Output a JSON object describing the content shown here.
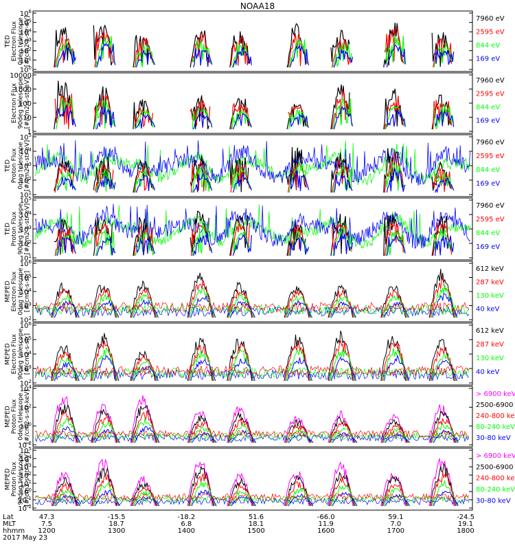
{
  "title": "NOAA18",
  "date_label": "2017 May 23",
  "colors": {
    "black": "#000000",
    "red": "#ff0000",
    "green": "#00ff00",
    "blue": "#0000ff",
    "magenta": "#ff00ff"
  },
  "footer": {
    "row_labels": [
      "Lat",
      "MLT",
      "hhmm"
    ],
    "columns": [
      {
        "lat": "47.3",
        "mlt": "7.5",
        "hhmm": "1200"
      },
      {
        "lat": "-15.5",
        "mlt": "18.7",
        "hhmm": "1300"
      },
      {
        "lat": "-18.2",
        "mlt": "6.8",
        "hhmm": "1400"
      },
      {
        "lat": "51.6",
        "mlt": "18.1",
        "hhmm": "1500"
      },
      {
        "lat": "-66.0",
        "mlt": "11.9",
        "hhmm": "1600"
      },
      {
        "lat": "59.1",
        "mlt": "7.0",
        "hhmm": "1700"
      },
      {
        "lat": "-24.5",
        "mlt": "19.1",
        "hhmm": "1800"
      }
    ]
  },
  "chart_data": [
    {
      "type": "line",
      "ylabel": [
        "TED",
        "Electron Flux",
        "0deg telescope",
        "[#/cm2-s-str-eV]"
      ],
      "ytick_labels": [
        "10^6",
        "10^5",
        "10^4",
        "10^3",
        "10^2",
        "10^1",
        "10^0"
      ],
      "ylim": [
        0,
        6
      ],
      "log": true,
      "xlim": [
        1200,
        1800
      ],
      "legend": [
        {
          "label": "7960 eV",
          "color": "black"
        },
        {
          "label": "2595 eV",
          "color": "red"
        },
        {
          "label": "844 eV",
          "color": "green"
        },
        {
          "label": "169 eV",
          "color": "blue"
        }
      ]
    },
    {
      "type": "line",
      "ylabel": [
        "Electron Flux",
        "90deg telescope",
        "[#/cm2-s-str-eV]"
      ],
      "ytick_labels": [
        "10000",
        "1000",
        "100",
        "10",
        "1"
      ],
      "ylim": [
        0,
        4
      ],
      "log": true,
      "xlim": [
        1200,
        1800
      ],
      "legend": [
        {
          "label": "7960 eV",
          "color": "black"
        },
        {
          "label": "2595 eV",
          "color": "red"
        },
        {
          "label": "844 eV",
          "color": "green"
        },
        {
          "label": "169 eV",
          "color": "blue"
        }
      ]
    },
    {
      "type": "line",
      "ylabel": [
        "TED",
        "Proton Flux",
        "0deg telescope",
        "[#/cm2-s-str-eV]"
      ],
      "ytick_labels": [
        "10^5",
        "10^4",
        "10^3",
        "10^2",
        "10^1"
      ],
      "ylim": [
        1,
        5
      ],
      "log": true,
      "xlim": [
        1200,
        1800
      ],
      "legend": [
        {
          "label": "7960 eV",
          "color": "black"
        },
        {
          "label": "2595 eV",
          "color": "red"
        },
        {
          "label": "844 eV",
          "color": "green"
        },
        {
          "label": "169 eV",
          "color": "blue"
        }
      ]
    },
    {
      "type": "line",
      "ylabel": [
        "TED",
        "Proton Flux",
        "90deg telescope",
        "[#/cm2-s-str-eV]"
      ],
      "ytick_labels": [
        "10^5",
        "10^4",
        "10^3",
        "10^2",
        "10^1"
      ],
      "ylim": [
        1,
        5
      ],
      "log": true,
      "xlim": [
        1200,
        1800
      ],
      "legend": [
        {
          "label": "7960 eV",
          "color": "black"
        },
        {
          "label": "2595 eV",
          "color": "red"
        },
        {
          "label": "844 eV",
          "color": "green"
        },
        {
          "label": "169 eV",
          "color": "blue"
        }
      ]
    },
    {
      "type": "line",
      "ylabel": [
        "MEPED",
        "Electron Flux",
        "0deg telescope",
        "[#/cm2-s-str]"
      ],
      "ytick_labels": [
        "10^6",
        "10^5",
        "10^4",
        "10^3",
        "10^2"
      ],
      "ylim": [
        2,
        6
      ],
      "log": true,
      "xlim": [
        1200,
        1800
      ],
      "legend": [
        {
          "label": "612 keV",
          "color": "black"
        },
        {
          "label": "287 keV",
          "color": "red"
        },
        {
          "label": "130 keV",
          "color": "green"
        },
        {
          "label": "40 keV",
          "color": "blue"
        }
      ]
    },
    {
      "type": "line",
      "ylabel": [
        "MEPED",
        "Electron Flux",
        "90deg telescope",
        "[#/cm2-s-str]"
      ],
      "ytick_labels": [
        "10^6",
        "10^5",
        "10^4",
        "10^3",
        "10^2"
      ],
      "ylim": [
        2,
        6
      ],
      "log": true,
      "xlim": [
        1200,
        1800
      ],
      "legend": [
        {
          "label": "612 keV",
          "color": "black"
        },
        {
          "label": "287 keV",
          "color": "red"
        },
        {
          "label": "130 keV",
          "color": "green"
        },
        {
          "label": "40 keV",
          "color": "blue"
        }
      ]
    },
    {
      "type": "line",
      "ylabel": [
        "MEPED",
        "Proton Flux",
        "0deg telescope",
        "[#/cm2-s-str-keV]"
      ],
      "ytick_labels": [
        "10^4",
        "10^2",
        "10^0",
        "10^-2"
      ],
      "ylim": [
        -2.5,
        5
      ],
      "log": true,
      "xlim": [
        1200,
        1800
      ],
      "legend": [
        {
          "label": "> 6900 keV",
          "color": "magenta"
        },
        {
          "label": "2500-6900",
          "color": "black"
        },
        {
          "label": "240-800 keV",
          "color": "red"
        },
        {
          "label": "80-240 keV",
          "color": "green"
        },
        {
          "label": "30-80 keV",
          "color": "blue"
        }
      ]
    },
    {
      "type": "line",
      "ylabel": [
        "MEPED",
        "Proton Flux",
        "90deg telescope",
        "[#/cm2-s-str-keV]"
      ],
      "ytick_labels": [
        "10^5",
        "10^4",
        "10^3",
        "10^2",
        "10^1",
        "10^0",
        "10^-1",
        "10^-2"
      ],
      "ylim": [
        -2.5,
        5
      ],
      "log": true,
      "xlim": [
        1200,
        1800
      ],
      "legend": [
        {
          "label": "> 6900 keV",
          "color": "magenta"
        },
        {
          "label": "2500-6900",
          "color": "black"
        },
        {
          "label": "240-800 keV",
          "color": "red"
        },
        {
          "label": "80-240 keV",
          "color": "green"
        },
        {
          "label": "30-80 keV",
          "color": "blue"
        }
      ]
    }
  ]
}
